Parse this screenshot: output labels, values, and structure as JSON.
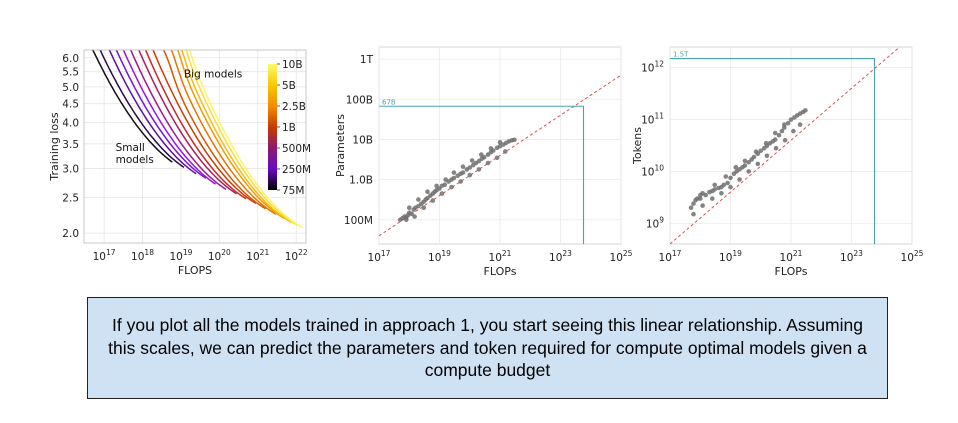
{
  "caption": "If you plot all the models trained in approach 1, you start seeing this linear relationship. Assuming this scales, we can predict the parameters and token required for compute optimal models given a compute budget",
  "chart_data": [
    {
      "type": "line",
      "xlabel": "FLOPS",
      "ylabel": "Training loss",
      "x_scale": "log",
      "y_scale": "log",
      "xlim": [
        3e+16,
        1.8e+22
      ],
      "ylim": [
        1.88,
        6.3
      ],
      "x_ticks": [
        {
          "v": 1e+17,
          "base": "10",
          "exp": "17"
        },
        {
          "v": 1e+18,
          "base": "10",
          "exp": "18"
        },
        {
          "v": 1e+19,
          "base": "10",
          "exp": "19"
        },
        {
          "v": 1e+20,
          "base": "10",
          "exp": "20"
        },
        {
          "v": 1e+21,
          "base": "10",
          "exp": "21"
        },
        {
          "v": 1e+22,
          "base": "10",
          "exp": "22"
        }
      ],
      "y_ticks": [
        "6.0",
        "5.5",
        "5.0",
        "4.5",
        "4.0",
        "3.5",
        "3.0",
        "2.5",
        "2.0"
      ],
      "annotations": [
        {
          "text": "Big models",
          "x": 1.2e+19,
          "y": 5.3
        },
        {
          "text": "Small",
          "x": 2e+17,
          "y": 3.35
        },
        {
          "text": "models",
          "x": 2e+17,
          "y": 3.1
        }
      ],
      "colorbar": {
        "labels": [
          "10B",
          "5B",
          "2.5B",
          "1B",
          "500M",
          "250M",
          "75M"
        ],
        "colors": [
          "#fbfb6e",
          "#f9c800",
          "#f28d00",
          "#c83c00",
          "#8a1a6b",
          "#6a0bc4",
          "#000000"
        ]
      },
      "curves": [
        {
          "size": "75M",
          "color": "#111111",
          "c_end": 6e+18,
          "l_end": 3.12,
          "slope_end": -0.075
        },
        {
          "size": "100M",
          "color": "#2b0b4a",
          "c_end": 1.2e+19,
          "l_end": 3.02,
          "slope_end": -0.07
        },
        {
          "size": "150M",
          "color": "#5a0fa3",
          "c_end": 2.5e+19,
          "l_end": 2.9,
          "slope_end": -0.07
        },
        {
          "size": "200M",
          "color": "#7a13d6",
          "c_end": 4.5e+19,
          "l_end": 2.82,
          "slope_end": -0.068
        },
        {
          "size": "250M",
          "color": "#9416e8",
          "c_end": 8e+19,
          "l_end": 2.72,
          "slope_end": -0.068
        },
        {
          "size": "350M",
          "color": "#a0188a",
          "c_end": 1.5e+20,
          "l_end": 2.63,
          "slope_end": -0.066
        },
        {
          "size": "500M",
          "color": "#b01d5a",
          "c_end": 2.8e+20,
          "l_end": 2.56,
          "slope_end": -0.065
        },
        {
          "size": "700M",
          "color": "#c32a28",
          "c_end": 5e+20,
          "l_end": 2.48,
          "slope_end": -0.063
        },
        {
          "size": "1B",
          "color": "#cd3d00",
          "c_end": 9e+20,
          "l_end": 2.41,
          "slope_end": -0.062
        },
        {
          "size": "1.5B",
          "color": "#d95500",
          "c_end": 1.6e+21,
          "l_end": 2.33,
          "slope_end": -0.061
        },
        {
          "size": "2.5B",
          "color": "#e77400",
          "c_end": 3e+21,
          "l_end": 2.25,
          "slope_end": -0.06
        },
        {
          "size": "3.5B",
          "color": "#f29a00",
          "c_end": 5e+21,
          "l_end": 2.19,
          "slope_end": -0.06
        },
        {
          "size": "5B",
          "color": "#f7bb10",
          "c_end": 7.5e+21,
          "l_end": 2.14,
          "slope_end": -0.058
        },
        {
          "size": "7B",
          "color": "#f9dc3a",
          "c_end": 1.1e+22,
          "l_end": 2.1,
          "slope_end": -0.057
        },
        {
          "size": "10B",
          "color": "#fbf56a",
          "c_end": 1.5e+22,
          "l_end": 2.07,
          "slope_end": -0.056
        }
      ]
    },
    {
      "type": "scatter",
      "xlabel": "FLOPs",
      "ylabel": "Parameters",
      "x_scale": "log",
      "y_scale": "log",
      "xlim": [
        1e+17,
        1e+25
      ],
      "ylim": [
        25000000.0,
        2000000000000.0
      ],
      "x_ticks": [
        {
          "v": 1e+17,
          "base": "10",
          "exp": "17"
        },
        {
          "v": 1e+19,
          "base": "10",
          "exp": "19"
        },
        {
          "v": 1e+21,
          "base": "10",
          "exp": "21"
        },
        {
          "v": 1e+23,
          "base": "10",
          "exp": "23"
        },
        {
          "v": 1e+25,
          "base": "10",
          "exp": "25"
        }
      ],
      "y_ticks": [
        {
          "v": 100000000.0,
          "label": "100M"
        },
        {
          "v": 1000000000.0,
          "label": "1.0B"
        },
        {
          "v": 10000000000.0,
          "label": "10B"
        },
        {
          "v": 100000000000.0,
          "label": "100B"
        },
        {
          "v": 1000000000000.0,
          "label": "1T"
        }
      ],
      "fit": {
        "slope": 0.5,
        "ref_x": 1e+21,
        "ref_y": 4000000000.0
      },
      "projection": {
        "x": 5.76e+23,
        "y": 67000000000.0,
        "label": "67B"
      },
      "points": [
        [
          5e+17,
          100000000.0
        ],
        [
          6e+17,
          110000000.0
        ],
        [
          7e+17,
          120000000.0
        ],
        [
          8e+17,
          115000000.0
        ],
        [
          9e+17,
          130000000.0
        ],
        [
          1e+18,
          150000000.0
        ],
        [
          1.2e+18,
          140000000.0
        ],
        [
          1.4e+18,
          180000000.0
        ],
        [
          1.6e+18,
          200000000.0
        ],
        [
          2e+18,
          220000000.0
        ],
        [
          2.5e+18,
          250000000.0
        ],
        [
          3e+18,
          280000000.0
        ],
        [
          3.5e+18,
          320000000.0
        ],
        [
          4e+18,
          350000000.0
        ],
        [
          5e+18,
          400000000.0
        ],
        [
          6e+18,
          450000000.0
        ],
        [
          7e+18,
          500000000.0
        ],
        [
          8e+18,
          550000000.0
        ],
        [
          1e+19,
          600000000.0
        ],
        [
          1.2e+19,
          700000000.0
        ],
        [
          1.5e+19,
          750000000.0
        ],
        [
          2e+19,
          900000000.0
        ],
        [
          2.5e+19,
          1000000000.0
        ],
        [
          3e+19,
          1100000000.0
        ],
        [
          4e+19,
          1250000000.0
        ],
        [
          5e+19,
          1400000000.0
        ],
        [
          6e+19,
          1500000000.0
        ],
        [
          8e+19,
          1800000000.0
        ],
        [
          1e+20,
          2000000000.0
        ],
        [
          1.3e+20,
          2300000000.0
        ],
        [
          1.6e+20,
          2600000000.0
        ],
        [
          2e+20,
          2900000000.0
        ],
        [
          2.5e+20,
          3300000000.0
        ],
        [
          3e+20,
          3600000000.0
        ],
        [
          4e+20,
          4200000000.0
        ],
        [
          5e+20,
          4800000000.0
        ],
        [
          6e+20,
          5300000000.0
        ],
        [
          8e+20,
          6200000000.0
        ],
        [
          1e+21,
          6800000000.0
        ],
        [
          1.3e+21,
          7500000000.0
        ],
        [
          1.6e+21,
          8200000000.0
        ],
        [
          2e+21,
          9000000000.0
        ],
        [
          2.5e+21,
          9500000000.0
        ],
        [
          3e+21,
          9800000000.0
        ],
        [
          8e+17,
          100000000.0
        ],
        [
          1.5e+18,
          120000000.0
        ],
        [
          3e+18,
          200000000.0
        ],
        [
          6e+18,
          300000000.0
        ],
        [
          1.2e+19,
          450000000.0
        ],
        [
          2.5e+19,
          650000000.0
        ],
        [
          5e+19,
          900000000.0
        ],
        [
          1e+20,
          1300000000.0
        ],
        [
          2e+20,
          1800000000.0
        ],
        [
          4e+20,
          2600000000.0
        ],
        [
          8e+20,
          3500000000.0
        ],
        [
          1.5e+21,
          5000000000.0
        ],
        [
          1e+18,
          200000000.0
        ],
        [
          2e+18,
          320000000.0
        ],
        [
          4e+18,
          500000000.0
        ],
        [
          8e+18,
          700000000.0
        ],
        [
          1.6e+19,
          1000000000.0
        ],
        [
          3e+19,
          1500000000.0
        ],
        [
          6e+19,
          2100000000.0
        ],
        [
          1.2e+20,
          3000000000.0
        ],
        [
          2.4e+20,
          4200000000.0
        ],
        [
          5e+20,
          6000000000.0
        ],
        [
          1e+21,
          8500000000.0
        ]
      ]
    },
    {
      "type": "scatter",
      "xlabel": "FLOPs",
      "ylabel": "Tokens",
      "x_scale": "log",
      "y_scale": "log",
      "xlim": [
        1e+17,
        1e+25
      ],
      "ylim": [
        400000000.0,
        2500000000000.0
      ],
      "x_ticks": [
        {
          "v": 1e+17,
          "base": "10",
          "exp": "17"
        },
        {
          "v": 1e+19,
          "base": "10",
          "exp": "19"
        },
        {
          "v": 1e+21,
          "base": "10",
          "exp": "21"
        },
        {
          "v": 1e+23,
          "base": "10",
          "exp": "23"
        },
        {
          "v": 1e+25,
          "base": "10",
          "exp": "25"
        }
      ],
      "y_ticks": [
        {
          "v": 1000000000.0,
          "base": "10",
          "exp": "9"
        },
        {
          "v": 10000000000.0,
          "base": "10",
          "exp": "10"
        },
        {
          "v": 100000000000.0,
          "base": "10",
          "exp": "11"
        },
        {
          "v": 1000000000000.0,
          "base": "10",
          "exp": "12"
        }
      ],
      "fit": {
        "slope": 0.5,
        "ref_x": 1e+21,
        "ref_y": 40000000000.0
      },
      "projection": {
        "x": 5.76e+23,
        "y": 1500000000000.0,
        "label": "1.5T"
      },
      "points": [
        [
          5e+17,
          2000000000.0
        ],
        [
          6e+17,
          2400000000.0
        ],
        [
          7e+17,
          2800000000.0
        ],
        [
          8e+17,
          3000000000.0
        ],
        [
          1e+18,
          3500000000.0
        ],
        [
          1.2e+18,
          3800000000.0
        ],
        [
          1.5e+18,
          3500000000.0
        ],
        [
          2e+18,
          4000000000.0
        ],
        [
          2.5e+18,
          4200000000.0
        ],
        [
          3e+18,
          4500000000.0
        ],
        [
          4e+18,
          4800000000.0
        ],
        [
          5e+18,
          5000000000.0
        ],
        [
          6e+18,
          5500000000.0
        ],
        [
          8e+18,
          6000000000.0
        ],
        [
          1e+19,
          7500000000.0
        ],
        [
          1.3e+19,
          9000000000.0
        ],
        [
          1.6e+19,
          10000000000.0
        ],
        [
          2e+19,
          11000000000.0
        ],
        [
          2.5e+19,
          12000000000.0
        ],
        [
          3e+19,
          13000000000.0
        ],
        [
          4e+19,
          15000000000.0
        ],
        [
          5e+19,
          17000000000.0
        ],
        [
          6e+19,
          19000000000.0
        ],
        [
          8e+19,
          22000000000.0
        ],
        [
          1e+20,
          25000000000.0
        ],
        [
          1.3e+20,
          28000000000.0
        ],
        [
          1.6e+20,
          31000000000.0
        ],
        [
          2e+20,
          35000000000.0
        ],
        [
          2.5e+20,
          38000000000.0
        ],
        [
          3e+20,
          41000000000.0
        ],
        [
          4e+20,
          50000000000.0
        ],
        [
          5e+20,
          60000000000.0
        ],
        [
          6e+20,
          70000000000.0
        ],
        [
          8e+20,
          85000000000.0
        ],
        [
          1e+21,
          100000000000.0
        ],
        [
          1.3e+21,
          110000000000.0
        ],
        [
          1.6e+21,
          120000000000.0
        ],
        [
          2e+21,
          130000000000.0
        ],
        [
          2.5e+21,
          140000000000.0
        ],
        [
          3e+21,
          150000000000.0
        ],
        [
          6e+17,
          1500000000.0
        ],
        [
          1.2e+18,
          2200000000.0
        ],
        [
          2.5e+18,
          3000000000.0
        ],
        [
          5e+18,
          3800000000.0
        ],
        [
          1e+19,
          5000000000.0
        ],
        [
          2e+19,
          7000000000.0
        ],
        [
          4e+19,
          10000000000.0
        ],
        [
          8e+19,
          14000000000.0
        ],
        [
          1.6e+20,
          20000000000.0
        ],
        [
          3.2e+20,
          28000000000.0
        ],
        [
          6.4e+20,
          40000000000.0
        ],
        [
          1.2e+21,
          60000000000.0
        ],
        [
          2e+21,
          80000000000.0
        ],
        [
          1e+18,
          3000000000.0
        ],
        [
          3e+18,
          5500000000.0
        ],
        [
          7e+18,
          8000000000.0
        ],
        [
          1.5e+19,
          12000000000.0
        ],
        [
          3e+19,
          16000000000.0
        ],
        [
          7e+19,
          24000000000.0
        ],
        [
          1.5e+20,
          35000000000.0
        ],
        [
          3e+20,
          55000000000.0
        ],
        [
          6e+20,
          80000000000.0
        ]
      ]
    }
  ]
}
